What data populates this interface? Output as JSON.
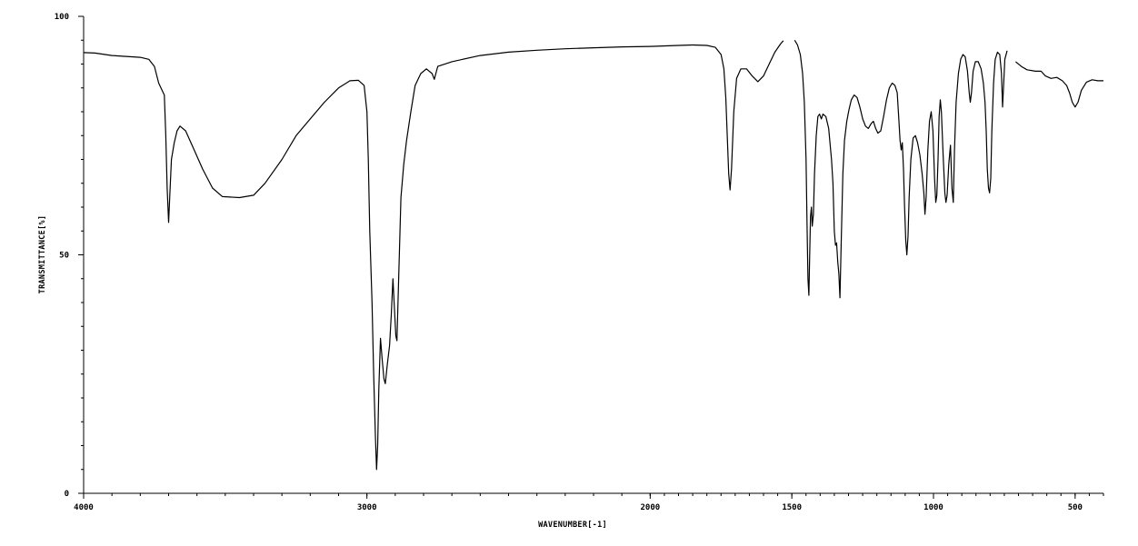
{
  "chart_data": {
    "type": "line",
    "title": "",
    "xlabel": "WAVENUMBER[-1]",
    "ylabel": "TRANSMITTANCE[%]",
    "xlim": [
      4000,
      400
    ],
    "ylim": [
      0,
      100
    ],
    "x_ticks": [
      {
        "value": 4000,
        "label": "4000"
      },
      {
        "value": 3000,
        "label": "3000"
      },
      {
        "value": 2000,
        "label": "2000"
      },
      {
        "value": 1500,
        "label": "1500"
      },
      {
        "value": 1000,
        "label": "1000"
      },
      {
        "value": 500,
        "label": "500"
      }
    ],
    "y_ticks": [
      {
        "value": 0,
        "label": "0"
      },
      {
        "value": 50,
        "label": "50"
      },
      {
        "value": 100,
        "label": "100"
      }
    ],
    "grid": false,
    "series": [
      {
        "color": "#000000",
        "segments": [
          [
            [
              4000,
              92.4
            ],
            [
              3960,
              92.3
            ],
            [
              3900,
              91.8
            ],
            [
              3850,
              91.6
            ],
            [
              3800,
              91.4
            ],
            [
              3770,
              91.0
            ],
            [
              3750,
              89.5
            ],
            [
              3735,
              86.0
            ],
            [
              3715,
              83.5
            ],
            [
              3710,
              75.0
            ],
            [
              3705,
              64.0
            ],
            [
              3700,
              56.8
            ],
            [
              3696,
              62.0
            ],
            [
              3690,
              70.0
            ],
            [
              3680,
              73.5
            ],
            [
              3670,
              76.0
            ],
            [
              3660,
              77.0
            ],
            [
              3640,
              76.0
            ],
            [
              3610,
              72.0
            ],
            [
              3580,
              68.0
            ],
            [
              3545,
              64.0
            ],
            [
              3510,
              62.2
            ],
            [
              3450,
              62.0
            ],
            [
              3400,
              62.5
            ],
            [
              3360,
              65.0
            ],
            [
              3300,
              70.0
            ],
            [
              3250,
              75.0
            ],
            [
              3200,
              78.5
            ],
            [
              3150,
              82.0
            ],
            [
              3100,
              85.0
            ],
            [
              3060,
              86.5
            ],
            [
              3030,
              86.6
            ],
            [
              3010,
              85.5
            ],
            [
              3000,
              80.0
            ],
            [
              2995,
              70.0
            ],
            [
              2990,
              55.0
            ],
            [
              2982,
              40.0
            ],
            [
              2976,
              25.0
            ],
            [
              2970,
              12.0
            ],
            [
              2966,
              5.0
            ],
            [
              2962,
              10.0
            ],
            [
              2958,
              22.0
            ],
            [
              2952,
              32.5
            ],
            [
              2946,
              28.0
            ],
            [
              2940,
              24.0
            ],
            [
              2935,
              23.0
            ],
            [
              2928,
              27.0
            ],
            [
              2920,
              31.0
            ],
            [
              2914,
              37.5
            ],
            [
              2908,
              45.0
            ],
            [
              2904,
              40.0
            ],
            [
              2898,
              33.0
            ],
            [
              2894,
              32.0
            ],
            [
              2888,
              45.0
            ],
            [
              2880,
              62.0
            ],
            [
              2870,
              69.0
            ],
            [
              2860,
              74.0
            ],
            [
              2845,
              80.0
            ],
            [
              2830,
              85.5
            ],
            [
              2810,
              88.0
            ],
            [
              2790,
              89.0
            ],
            [
              2770,
              88.0
            ],
            [
              2762,
              86.8
            ],
            [
              2750,
              89.5
            ],
            [
              2700,
              90.5
            ],
            [
              2600,
              91.8
            ],
            [
              2500,
              92.5
            ],
            [
              2400,
              92.9
            ],
            [
              2300,
              93.2
            ],
            [
              2200,
              93.4
            ],
            [
              2100,
              93.6
            ],
            [
              2000,
              93.7
            ],
            [
              1900,
              93.9
            ],
            [
              1850,
              94.0
            ],
            [
              1800,
              93.9
            ],
            [
              1770,
              93.5
            ],
            [
              1750,
              92.0
            ],
            [
              1740,
              89.0
            ],
            [
              1733,
              83.0
            ],
            [
              1728,
              75.0
            ],
            [
              1723,
              67.0
            ],
            [
              1718,
              63.6
            ],
            [
              1713,
              68.0
            ],
            [
              1705,
              80.0
            ],
            [
              1695,
              87.0
            ],
            [
              1680,
              89.0
            ],
            [
              1660,
              89.0
            ],
            [
              1640,
              87.5
            ],
            [
              1620,
              86.3
            ],
            [
              1600,
              87.5
            ],
            [
              1580,
              90.0
            ],
            [
              1560,
              92.5
            ],
            [
              1540,
              94.2
            ],
            [
              1530,
              94.9
            ]
          ],
          [
            [
              1490,
              95.0
            ],
            [
              1480,
              94.0
            ],
            [
              1470,
              92.0
            ],
            [
              1462,
              88.0
            ],
            [
              1456,
              82.0
            ],
            [
              1450,
              70.0
            ],
            [
              1446,
              55.0
            ],
            [
              1443,
              45.0
            ],
            [
              1440,
              41.5
            ],
            [
              1437,
              50.0
            ],
            [
              1434,
              58.0
            ],
            [
              1431,
              60.0
            ],
            [
              1428,
              56.0
            ],
            [
              1424,
              58.5
            ],
            [
              1420,
              67.0
            ],
            [
              1414,
              75.0
            ],
            [
              1408,
              79.0
            ],
            [
              1402,
              79.5
            ],
            [
              1396,
              78.5
            ],
            [
              1390,
              79.5
            ],
            [
              1380,
              79.0
            ],
            [
              1370,
              76.5
            ],
            [
              1360,
              70.0
            ],
            [
              1355,
              65.0
            ],
            [
              1350,
              55.0
            ],
            [
              1346,
              52.0
            ],
            [
              1342,
              52.5
            ],
            [
              1338,
              48.5
            ],
            [
              1334,
              46.0
            ],
            [
              1330,
              41.0
            ],
            [
              1326,
              52.0
            ],
            [
              1320,
              67.0
            ],
            [
              1314,
              74.0
            ],
            [
              1306,
              78.0
            ],
            [
              1298,
              80.5
            ],
            [
              1290,
              82.5
            ],
            [
              1280,
              83.5
            ],
            [
              1270,
              83.0
            ],
            [
              1260,
              81.0
            ],
            [
              1250,
              78.5
            ],
            [
              1240,
              77.0
            ],
            [
              1230,
              76.5
            ],
            [
              1220,
              77.5
            ],
            [
              1212,
              78.0
            ],
            [
              1204,
              76.5
            ],
            [
              1196,
              75.5
            ],
            [
              1186,
              76.0
            ],
            [
              1176,
              79.0
            ],
            [
              1166,
              82.5
            ],
            [
              1156,
              85.0
            ],
            [
              1146,
              86.0
            ],
            [
              1136,
              85.5
            ],
            [
              1128,
              84.0
            ],
            [
              1122,
              78.0
            ],
            [
              1118,
              74.0
            ],
            [
              1114,
              72.0
            ],
            [
              1110,
              73.5
            ],
            [
              1106,
              68.0
            ],
            [
              1102,
              60.0
            ],
            [
              1098,
              53.0
            ],
            [
              1094,
              50.0
            ],
            [
              1090,
              54.0
            ],
            [
              1086,
              62.0
            ],
            [
              1080,
              70.0
            ],
            [
              1072,
              74.5
            ],
            [
              1064,
              75.0
            ],
            [
              1056,
              73.5
            ],
            [
              1048,
              71.0
            ],
            [
              1040,
              67.0
            ],
            [
              1034,
              63.0
            ],
            [
              1030,
              58.5
            ],
            [
              1026,
              62.0
            ],
            [
              1020,
              72.0
            ],
            [
              1014,
              78.0
            ],
            [
              1008,
              80.0
            ],
            [
              1002,
              76.0
            ],
            [
              996,
              66.0
            ],
            [
              992,
              61.0
            ],
            [
              988,
              62.5
            ],
            [
              984,
              70.0
            ],
            [
              980,
              79.0
            ],
            [
              976,
              82.5
            ],
            [
              972,
              80.0
            ],
            [
              966,
              71.0
            ],
            [
              960,
              63.0
            ],
            [
              956,
              61.0
            ],
            [
              952,
              62.5
            ],
            [
              946,
              69.0
            ],
            [
              940,
              73.0
            ],
            [
              935,
              64.0
            ],
            [
              930,
              61.0
            ],
            [
              926,
              72.0
            ],
            [
              920,
              82.0
            ],
            [
              912,
              88.0
            ],
            [
              904,
              91.0
            ],
            [
              896,
              92.0
            ],
            [
              888,
              91.5
            ],
            [
              880,
              88.5
            ],
            [
              874,
              84.0
            ],
            [
              870,
              82.0
            ],
            [
              866,
              84.0
            ],
            [
              860,
              88.5
            ],
            [
              852,
              90.5
            ],
            [
              842,
              90.5
            ],
            [
              832,
              89.0
            ],
            [
              824,
              86.0
            ],
            [
              818,
              82.0
            ],
            [
              814,
              76.0
            ],
            [
              810,
              68.0
            ],
            [
              806,
              64.0
            ],
            [
              802,
              63.0
            ],
            [
              798,
              66.0
            ],
            [
              794,
              76.0
            ],
            [
              788,
              86.0
            ],
            [
              782,
              91.0
            ],
            [
              774,
              92.5
            ],
            [
              766,
              92.0
            ],
            [
              760,
              88.0
            ],
            [
              756,
              81.0
            ],
            [
              753,
              85.0
            ],
            [
              748,
              91.0
            ],
            [
              740,
              92.8
            ]
          ],
          [
            [
              710,
              90.5
            ],
            [
              690,
              89.5
            ],
            [
              670,
              88.8
            ],
            [
              640,
              88.5
            ],
            [
              620,
              88.5
            ],
            [
              605,
              87.5
            ],
            [
              585,
              87.0
            ],
            [
              565,
              87.2
            ],
            [
              545,
              86.5
            ],
            [
              530,
              85.5
            ],
            [
              520,
              84.0
            ],
            [
              510,
              82.0
            ],
            [
              500,
              81.0
            ],
            [
              490,
              82.0
            ],
            [
              478,
              84.5
            ],
            [
              460,
              86.2
            ],
            [
              440,
              86.7
            ],
            [
              420,
              86.5
            ],
            [
              400,
              86.5
            ]
          ]
        ]
      }
    ]
  }
}
